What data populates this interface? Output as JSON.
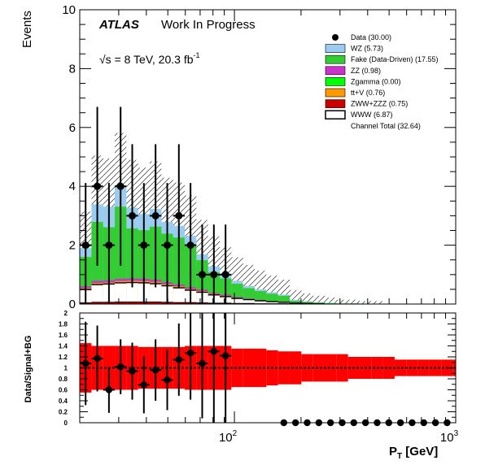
{
  "chart_data": [
    {
      "type": "bar",
      "stacked": true,
      "title": "",
      "experiment": "ATLAS",
      "status": "Work In Progress",
      "energy_label": "√s = 8 TeV, 20.3 fb",
      "energy_label_sup": "-1",
      "ylabel": "Events",
      "xlabel": "P",
      "xlabel_sub": "T",
      "xlabel_unit": " [GeV]",
      "xscale": "log",
      "xlim": [
        20,
        1000
      ],
      "ylim": [
        0,
        10
      ],
      "y_ticks": [
        0,
        2,
        4,
        6,
        8,
        10
      ],
      "x_tick_labels": [
        {
          "value": 100,
          "base": "10",
          "exp": "2"
        },
        {
          "value": 1000,
          "base": "10",
          "exp": "3"
        }
      ],
      "legend_placement": "top-right",
      "bin_edges": [
        20,
        22.6,
        25.5,
        28.8,
        32.5,
        36.7,
        41.4,
        46.8,
        52.8,
        59.6,
        67.3,
        76.0,
        85.8,
        96.9,
        109.4,
        123.5,
        139.4,
        157.4,
        177.7,
        200.7,
        226.6,
        255.8,
        288.8,
        326.0,
        368.1,
        415.6,
        469.2,
        529.7,
        598.0,
        675.2,
        762.3,
        860.6,
        971.6,
        1000
      ],
      "series": [
        {
          "name": "ZWW+ZZZ",
          "legend": "ZWW+ZZZ (0.75)",
          "color": "#cc0000",
          "style": "fill",
          "values": [
            0.04,
            0.06,
            0.06,
            0.07,
            0.07,
            0.07,
            0.07,
            0.06,
            0.05,
            0.05,
            0.04,
            0.03,
            0.03,
            0.02,
            0.02,
            0.01,
            0.01,
            0.01,
            0,
            0,
            0,
            0,
            0,
            0,
            0,
            0,
            0,
            0,
            0,
            0,
            0,
            0,
            0
          ]
        },
        {
          "name": "WWW",
          "legend": "WWW (6.87)",
          "color": "#ffffff",
          "style": "outline",
          "values": [
            0.45,
            0.6,
            0.62,
            0.65,
            0.66,
            0.65,
            0.62,
            0.56,
            0.5,
            0.42,
            0.36,
            0.28,
            0.22,
            0.17,
            0.13,
            0.1,
            0.07,
            0.05,
            0.03,
            0.02,
            0.01,
            0,
            0,
            0,
            0,
            0,
            0,
            0,
            0,
            0,
            0,
            0,
            0
          ]
        },
        {
          "name": "tt+V",
          "legend": "tt+V (0.76)",
          "color": "#ff9900",
          "style": "fill",
          "values": [
            0.04,
            0.05,
            0.05,
            0.06,
            0.06,
            0.06,
            0.06,
            0.05,
            0.05,
            0.04,
            0.04,
            0.03,
            0.03,
            0.02,
            0.02,
            0.01,
            0.01,
            0.01,
            0,
            0,
            0,
            0,
            0,
            0,
            0,
            0,
            0,
            0,
            0,
            0,
            0,
            0,
            0
          ]
        },
        {
          "name": "Zgamma",
          "legend": "Zgamma (0.00)",
          "color": "#00ff00",
          "style": "fill",
          "values": [
            0,
            0,
            0,
            0,
            0,
            0,
            0,
            0,
            0,
            0,
            0,
            0,
            0,
            0,
            0,
            0,
            0,
            0,
            0,
            0,
            0,
            0,
            0,
            0,
            0,
            0,
            0,
            0,
            0,
            0,
            0,
            0,
            0
          ]
        },
        {
          "name": "ZZ",
          "legend": "ZZ (0.98)",
          "color": "#cc33cc",
          "style": "fill",
          "values": [
            0.07,
            0.08,
            0.08,
            0.08,
            0.08,
            0.08,
            0.08,
            0.07,
            0.06,
            0.06,
            0.05,
            0.04,
            0.04,
            0.03,
            0.02,
            0.02,
            0.01,
            0.01,
            0,
            0,
            0,
            0,
            0,
            0,
            0,
            0,
            0,
            0,
            0,
            0,
            0,
            0,
            0
          ]
        },
        {
          "name": "Fake (Data-Driven)",
          "legend": "Fake (Data-Driven)  (17.55)",
          "color": "#33cc33",
          "style": "fill",
          "values": [
            1.0,
            2.0,
            1.8,
            2.45,
            1.7,
            1.65,
            1.8,
            1.65,
            1.6,
            1.45,
            1.0,
            0.7,
            0.55,
            0.45,
            0.35,
            0.3,
            0.25,
            0.2,
            0.08,
            0.05,
            0.04,
            0.03,
            0.02,
            0.02,
            0.01,
            0.01,
            0,
            0,
            0,
            0,
            0,
            0,
            0
          ]
        },
        {
          "name": "WZ",
          "legend": "WZ (5.73)",
          "color": "#99ccee",
          "style": "fill",
          "values": [
            0.3,
            0.6,
            0.7,
            0.7,
            0.7,
            0.55,
            0.6,
            0.4,
            0.4,
            0.3,
            0.2,
            0.2,
            0.15,
            0.1,
            0.08,
            0.06,
            0.05,
            0.04,
            0.03,
            0.02,
            0.01,
            0.01,
            0,
            0,
            0,
            0,
            0,
            0,
            0,
            0,
            0,
            0,
            0
          ]
        }
      ],
      "data_points": {
        "name": "Data",
        "legend": "Data (30.00)",
        "values": [
          2,
          4,
          2,
          4,
          3,
          2,
          3,
          2,
          3,
          2,
          1,
          1,
          1,
          0,
          0,
          0,
          0,
          0,
          0,
          0,
          0,
          0,
          0,
          0,
          0,
          0,
          0,
          0,
          0,
          0,
          0,
          0,
          0
        ]
      },
      "channel_total_label": "Channel Total  (32.64)"
    },
    {
      "type": "scatter",
      "ylabel": "Data/Signal+BG",
      "ylim": [
        0,
        2
      ],
      "y_ticks": [
        "0",
        "0.2",
        "0.4",
        "0.6",
        "0.8",
        "1",
        "1.2",
        "1.4",
        "1.6",
        "1.8",
        "2"
      ],
      "reference_line": 1,
      "ratio_values": [
        1.08,
        1.17,
        0.6,
        1.02,
        0.94,
        0.69,
        0.96,
        0.78,
        1.15,
        1.27,
        1.08,
        1.3,
        1.22,
        0,
        0,
        0,
        0,
        0,
        0,
        0,
        0,
        0,
        0,
        0,
        0,
        0,
        0,
        0,
        0,
        0,
        0,
        0,
        0
      ],
      "ratio_errors": [
        0.76,
        0.6,
        0.42,
        0.5,
        0.52,
        0.52,
        0.56,
        0.55,
        0.66,
        0.85,
        1.0,
        1.3,
        1.22,
        0,
        0,
        0,
        0,
        0,
        0,
        0,
        0,
        0,
        0,
        0,
        0,
        0,
        0,
        0,
        0,
        0,
        0,
        0,
        0
      ],
      "band_half_width": [
        0.45,
        0.4,
        0.4,
        0.4,
        0.4,
        0.38,
        0.38,
        0.38,
        0.38,
        0.4,
        0.4,
        0.4,
        0.4,
        0.35,
        0.35,
        0.35,
        0.32,
        0.3,
        0.3,
        0.25,
        0.25,
        0.25,
        0.25,
        0.2,
        0.2,
        0.2,
        0.2,
        0.15,
        0.15,
        0.15,
        0.15,
        0.15,
        0.15
      ]
    }
  ]
}
